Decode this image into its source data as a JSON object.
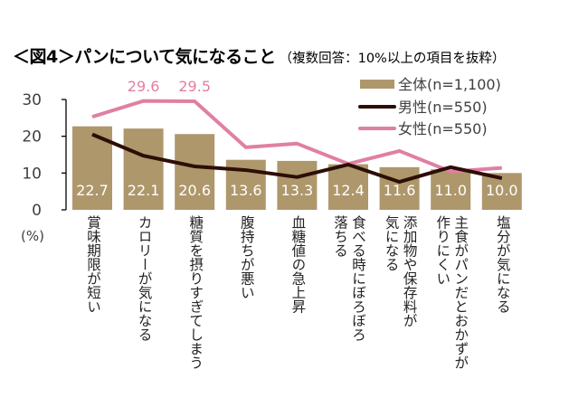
{
  "title": {
    "main": "＜図4＞パンについて気になること",
    "sub": "（複数回答：10%以上の項目を抜粋）"
  },
  "chart_data": {
    "type": "bar",
    "title": "＜図4＞パンについて気になること（複数回答：10%以上の項目を抜粋）",
    "ylabel": "(%)",
    "xlabel": "",
    "ylim": [
      0,
      30
    ],
    "yticks": [
      "0",
      "10",
      "20",
      "30"
    ],
    "grid": false,
    "legend_position": "top-right",
    "categories": [
      [
        "賞味期限が短い"
      ],
      [
        "カロリーが気になる"
      ],
      [
        "糖質を摂りすぎてしまう"
      ],
      [
        "腹持ちが悪い"
      ],
      [
        "血糖値の急上昇"
      ],
      [
        "食べる時にぼろぼろ",
        "落ちる"
      ],
      [
        "添加物や保存料が",
        "気になる"
      ],
      [
        "主食がパンだとおかずが",
        "作りにくい"
      ],
      [
        "塩分が気になる"
      ]
    ],
    "series": [
      {
        "name": "全体(n=1,100)",
        "type": "bar",
        "color": "#ae976b",
        "values": [
          22.7,
          22.1,
          20.6,
          13.6,
          13.3,
          12.4,
          11.6,
          11.0,
          10.0
        ],
        "labels": [
          "22.7",
          "22.1",
          "20.6",
          "13.6",
          "13.3",
          "12.4",
          "11.6",
          "11.0",
          "10.0"
        ]
      },
      {
        "name": "男性(n=550)",
        "type": "line",
        "color": "#2d0e07",
        "values": [
          20.5,
          14.7,
          11.8,
          10.8,
          8.9,
          12.3,
          7.6,
          11.6,
          8.6
        ]
      },
      {
        "name": "女性(n=550)",
        "type": "line",
        "color": "#e07fa3",
        "values": [
          25.3,
          29.6,
          29.5,
          17.0,
          18.0,
          12.5,
          16.0,
          10.4,
          11.4
        ],
        "annotations": [
          {
            "index": 1,
            "text": "29.6"
          },
          {
            "index": 2,
            "text": "29.5"
          }
        ]
      }
    ]
  }
}
